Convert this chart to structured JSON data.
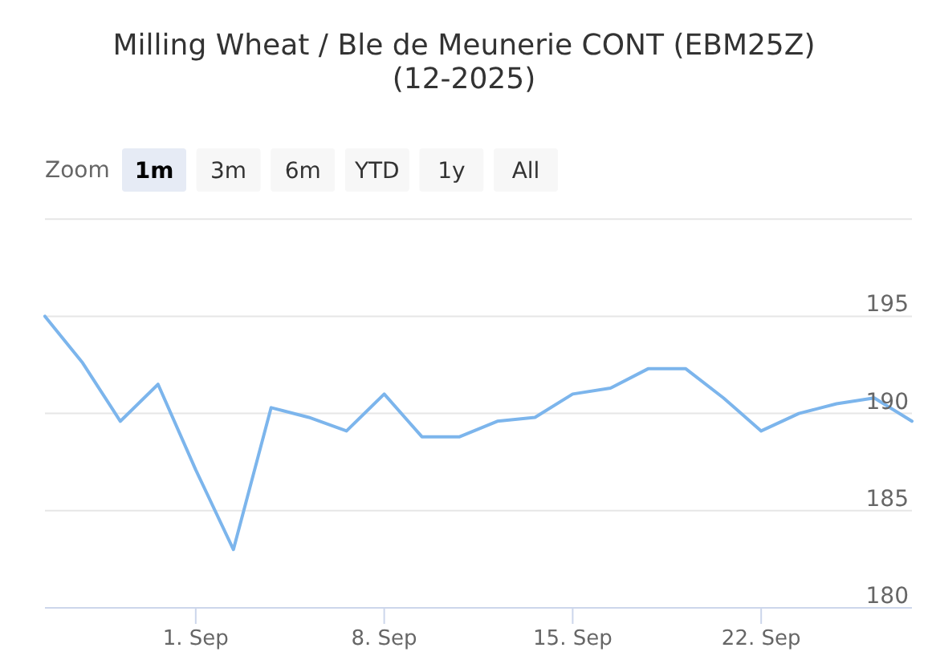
{
  "chart_data": {
    "type": "line",
    "title": "Milling Wheat / Ble de Meunerie CONT (EBM25Z) (12-2025)",
    "categories": [
      null,
      null,
      null,
      null,
      "1. Sep",
      null,
      null,
      null,
      null,
      "8. Sep",
      null,
      null,
      null,
      null,
      "15. Sep",
      null,
      null,
      null,
      null,
      "22. Sep",
      null,
      null,
      null,
      null
    ],
    "values": [
      195.0,
      192.6,
      189.6,
      191.5,
      187.1,
      183.0,
      190.3,
      189.8,
      189.1,
      191.0,
      188.8,
      188.8,
      189.6,
      189.8,
      191.0,
      191.3,
      192.3,
      192.3,
      190.8,
      189.1,
      190.0,
      190.5,
      190.8,
      189.6
    ],
    "color": "#7cb5ec",
    "ylim": [
      180,
      200
    ],
    "yticks": [
      180,
      185,
      190,
      195,
      {
        "value": 200,
        "label": null
      }
    ],
    "grid": "y",
    "annotations": [
      "Zoom",
      "1m",
      "3m",
      "6m",
      "YTD",
      "1y",
      "All"
    ]
  }
}
